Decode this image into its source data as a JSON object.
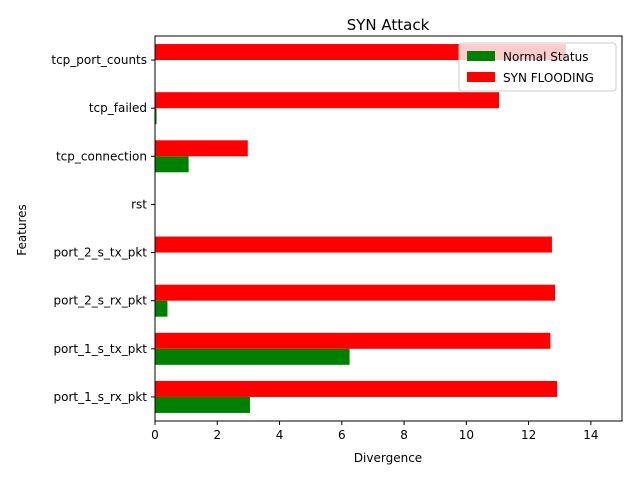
{
  "chart_data": {
    "type": "bar",
    "orientation": "horizontal",
    "title": "SYN Attack",
    "xlabel": "Divergence",
    "ylabel": "Features",
    "xlim": [
      0,
      15
    ],
    "xticks": [
      0,
      2,
      4,
      6,
      8,
      10,
      12,
      14
    ],
    "categories": [
      "port_1_s_rx_pkt",
      "port_1_s_tx_pkt",
      "port_2_s_rx_pkt",
      "port_2_s_tx_pkt",
      "rst",
      "tcp_connection",
      "tcp_failed",
      "tcp_port_counts"
    ],
    "series": [
      {
        "name": "Normal Status",
        "color": "#008000",
        "values": [
          3.05,
          6.25,
          0.4,
          0.0,
          0.0,
          1.08,
          0.05,
          0.0
        ]
      },
      {
        "name": "SYN FLOODING",
        "color": "#ff0000",
        "values": [
          12.92,
          12.7,
          12.85,
          12.75,
          0.0,
          2.98,
          11.05,
          13.2
        ]
      }
    ],
    "legend_position": "top-right",
    "grid": false
  }
}
